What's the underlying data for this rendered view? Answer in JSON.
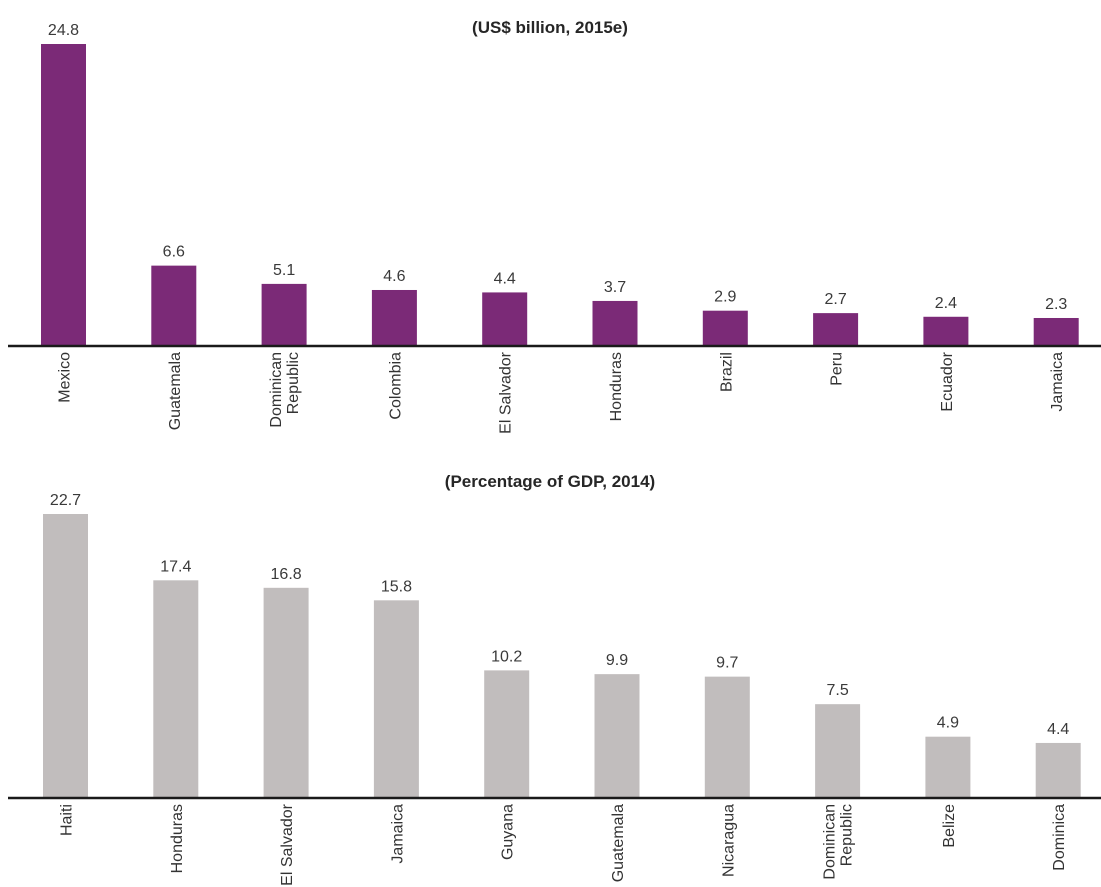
{
  "chart_data": [
    {
      "type": "bar",
      "title": "(US$ billion, 2015e)",
      "categories": [
        "Mexico",
        "Guatemala",
        "Dominican Republic",
        "Colombia",
        "El Salvador",
        "Honduras",
        "Brazil",
        "Peru",
        "Ecuador",
        "Jamaica"
      ],
      "values": [
        24.8,
        6.6,
        5.1,
        4.6,
        4.4,
        3.7,
        2.9,
        2.7,
        2.4,
        2.3
      ],
      "value_labels": [
        "24.8",
        "6.6",
        "5.1",
        "4.6",
        "4.4",
        "3.7",
        "2.9",
        "2.7",
        "2.4",
        "2.3"
      ],
      "xlabel": "",
      "ylabel": "",
      "ylim": [
        0,
        26.5
      ],
      "grid": false,
      "color": "#7b2a77"
    },
    {
      "type": "bar",
      "title": "(Percentage of GDP, 2014)",
      "categories": [
        "Haiti",
        "Honduras",
        "El Salvador",
        "Jamaica",
        "Guyana",
        "Guatemala",
        "Nicaragua",
        "Dominican Republic",
        "Belize",
        "Dominica"
      ],
      "values": [
        22.7,
        17.4,
        16.8,
        15.8,
        10.2,
        9.9,
        9.7,
        7.5,
        4.9,
        4.4
      ],
      "value_labels": [
        "22.7",
        "17.4",
        "16.8",
        "15.8",
        "10.2",
        "9.9",
        "9.7",
        "7.5",
        "4.9",
        "4.4"
      ],
      "xlabel": "",
      "ylabel": "",
      "ylim": [
        0,
        24
      ],
      "grid": false,
      "color": "#c1bdbd"
    }
  ]
}
